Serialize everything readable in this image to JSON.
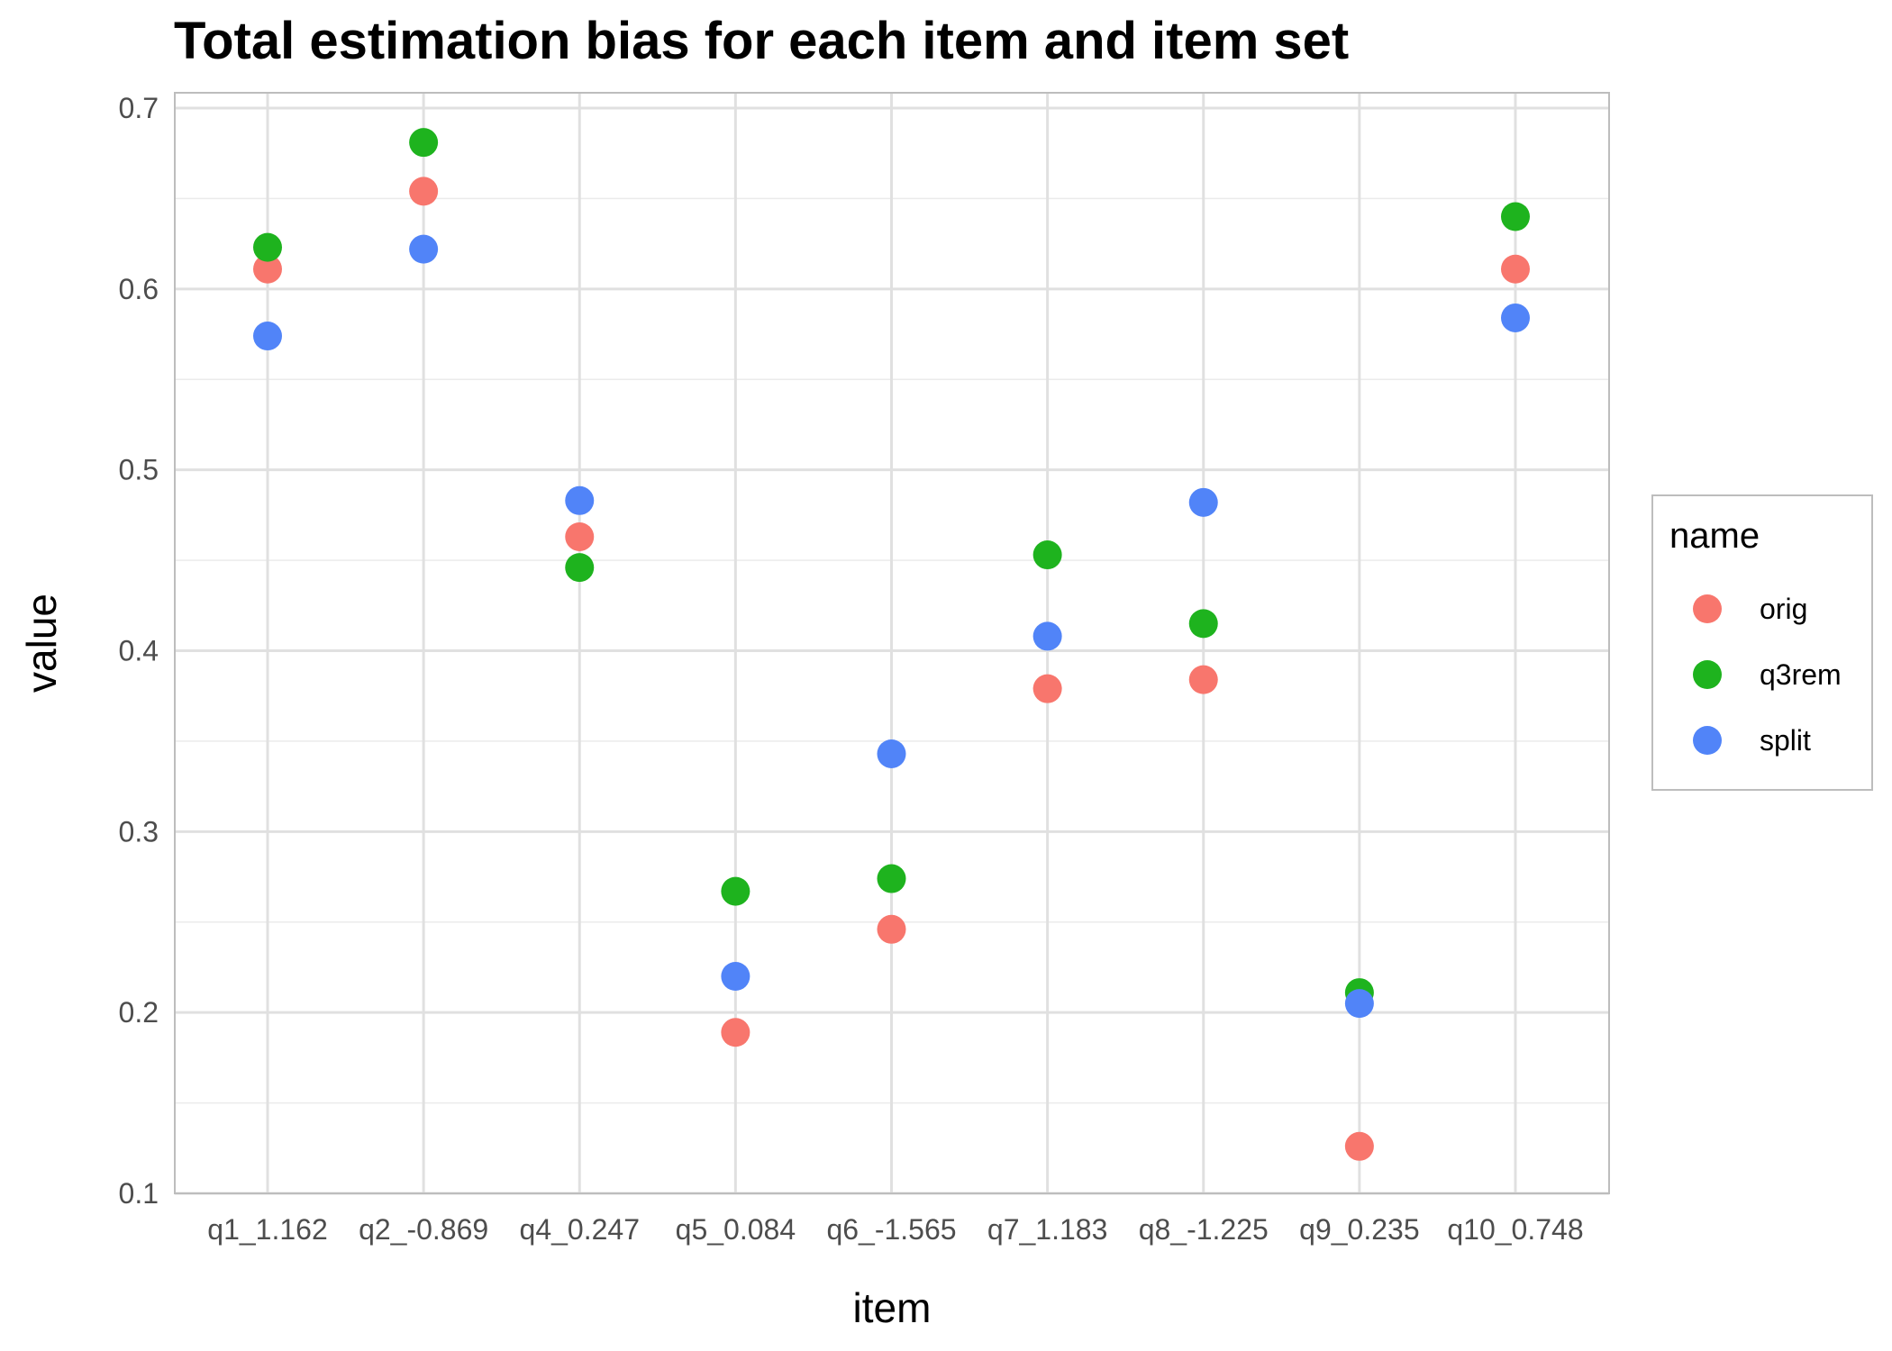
{
  "chart_data": {
    "type": "scatter",
    "title": "Total estimation bias for each item and item set",
    "xlabel": "item",
    "ylabel": "value",
    "categories": [
      "q1_1.162",
      "q2_-0.869",
      "q4_0.247",
      "q5_0.084",
      "q6_-1.565",
      "q7_1.183",
      "q8_-1.225",
      "q9_0.235",
      "q10_0.748"
    ],
    "y_ticks": [
      0.1,
      0.2,
      0.3,
      0.4,
      0.5,
      0.6,
      0.7
    ],
    "y_tick_labels": [
      "0.1",
      "0.2",
      "0.3",
      "0.4",
      "0.5",
      "0.6",
      "0.7"
    ],
    "ylim": [
      0.1,
      0.7
    ],
    "grid": true,
    "legend": {
      "title": "name",
      "placement": "right"
    },
    "series": [
      {
        "name": "orig",
        "color": "#F8766D",
        "values": [
          0.611,
          0.654,
          0.463,
          0.189,
          0.246,
          0.379,
          0.384,
          0.126,
          0.611
        ]
      },
      {
        "name": "q3rem",
        "color": "#1EB31E",
        "values": [
          0.623,
          0.681,
          0.446,
          0.267,
          0.274,
          0.453,
          0.415,
          0.211,
          0.64
        ]
      },
      {
        "name": "split",
        "color": "#5184F8",
        "values": [
          0.574,
          0.622,
          0.483,
          0.22,
          0.343,
          0.408,
          0.482,
          0.205,
          0.584
        ]
      }
    ]
  }
}
